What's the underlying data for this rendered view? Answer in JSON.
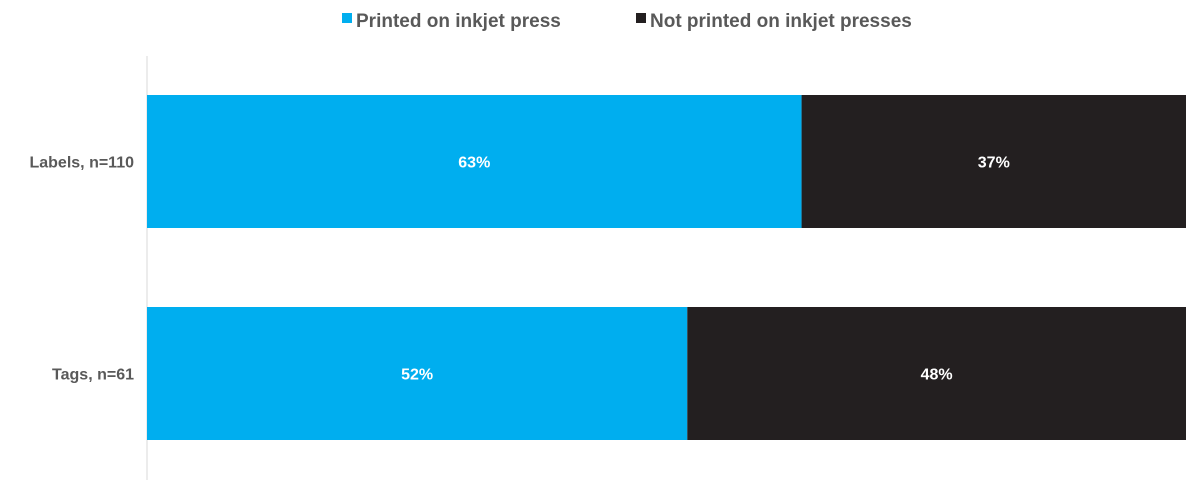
{
  "chart_data": {
    "type": "bar",
    "orientation": "horizontal",
    "stacked": true,
    "percent_stacked": true,
    "categories": [
      "Labels, n=110",
      "Tags, n=61"
    ],
    "series": [
      {
        "name": "Printed on inkjet press",
        "values": [
          63,
          52
        ],
        "color": "#00AEEF"
      },
      {
        "name": "Not printed on inkjet presses",
        "values": [
          37,
          48
        ],
        "color": "#231F20"
      }
    ],
    "data_labels": [
      [
        "63%",
        "52%"
      ],
      [
        "37%",
        "48%"
      ]
    ],
    "xlim": [
      0,
      100
    ],
    "legend_position": "top",
    "grid": false,
    "axis_line_color": "#D9D9D9"
  }
}
